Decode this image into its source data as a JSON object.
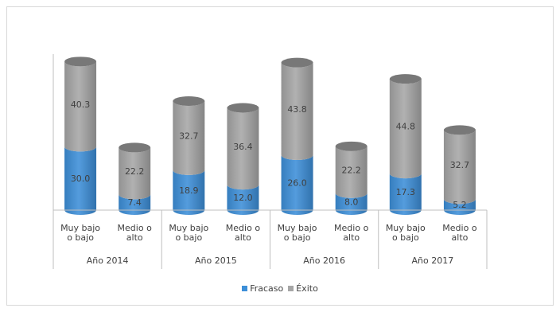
{
  "chart_data": {
    "type": "bar",
    "style": "stacked-cylinder",
    "groups": [
      {
        "label": "Año 2014",
        "categories": [
          "Muy bajo o bajo",
          "Medio o alto"
        ]
      },
      {
        "label": "Año 2015",
        "categories": [
          "Muy bajo o bajo",
          "Medio o alto"
        ]
      },
      {
        "label": "Año 2016",
        "categories": [
          "Muy bajo o bajo",
          "Medio o alto"
        ]
      },
      {
        "label": "Año 2017",
        "categories": [
          "Muy bajo o bajo",
          "Medio o alto"
        ]
      }
    ],
    "category_lines": [
      [
        "Muy bajo",
        "o bajo"
      ],
      [
        "Medio o",
        "alto"
      ]
    ],
    "series": [
      {
        "name": "Fracaso",
        "color": "#3d8fd8",
        "values": [
          30.0,
          7.4,
          18.9,
          12.0,
          26.0,
          8.0,
          17.3,
          5.2
        ]
      },
      {
        "name": "Éxito",
        "color": "#a6a6a6",
        "values": [
          40.3,
          22.2,
          32.7,
          36.4,
          43.8,
          22.2,
          44.8,
          32.7
        ]
      }
    ],
    "ylim": [
      0,
      75
    ],
    "legend_position": "bottom",
    "grid": false
  }
}
